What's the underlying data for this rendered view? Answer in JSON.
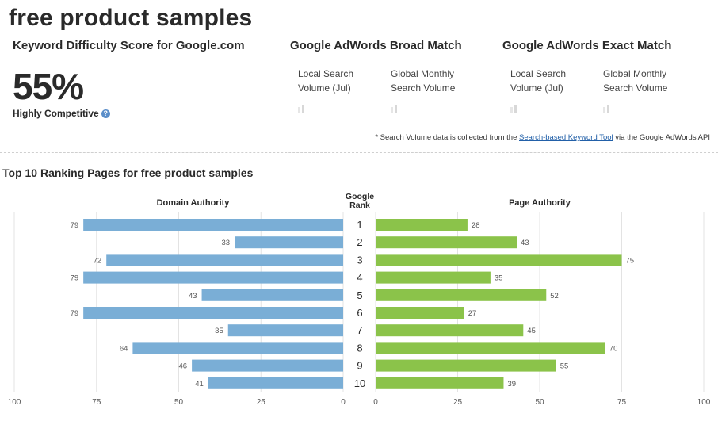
{
  "page": {
    "title": "free product samples"
  },
  "keyword_difficulty": {
    "heading": "Keyword Difficulty Score for Google.com",
    "score": "55%",
    "label": "Highly Competitive",
    "help_icon": "question-circle-icon"
  },
  "broad_match": {
    "heading": "Google AdWords Broad Match",
    "local_label": "Local Search Volume (Jul)",
    "global_label": "Global Monthly Search Volume"
  },
  "exact_match": {
    "heading": "Google AdWords Exact Match",
    "local_label": "Local Search Volume (Jul)",
    "global_label": "Global Monthly Search Volume"
  },
  "footnote": {
    "prefix": "* Search Volume data is collected from the ",
    "link_text": "Search-based Keyword Tool",
    "suffix": " via the Google AdWords API"
  },
  "chart_data": {
    "type": "bar",
    "title": "Top 10 Ranking Pages for free product samples",
    "left_axis_title": "Domain Authority",
    "center_title": "Google Rank",
    "right_axis_title": "Page Authority",
    "categories": [
      "1",
      "2",
      "3",
      "4",
      "5",
      "6",
      "7",
      "8",
      "9",
      "10"
    ],
    "series": [
      {
        "name": "Domain Authority",
        "values": [
          79,
          33,
          72,
          79,
          43,
          79,
          35,
          64,
          46,
          41
        ],
        "color": "#7aaed6",
        "direction": "left"
      },
      {
        "name": "Page Authority",
        "values": [
          28,
          43,
          75,
          35,
          52,
          27,
          45,
          70,
          55,
          39
        ],
        "color": "#8bc34a",
        "direction": "right"
      }
    ],
    "left_ticks": [
      "100",
      "75",
      "50",
      "25",
      "0"
    ],
    "right_ticks": [
      "0",
      "25",
      "50",
      "75",
      "100"
    ],
    "xlim": [
      0,
      100
    ],
    "grid": true
  }
}
